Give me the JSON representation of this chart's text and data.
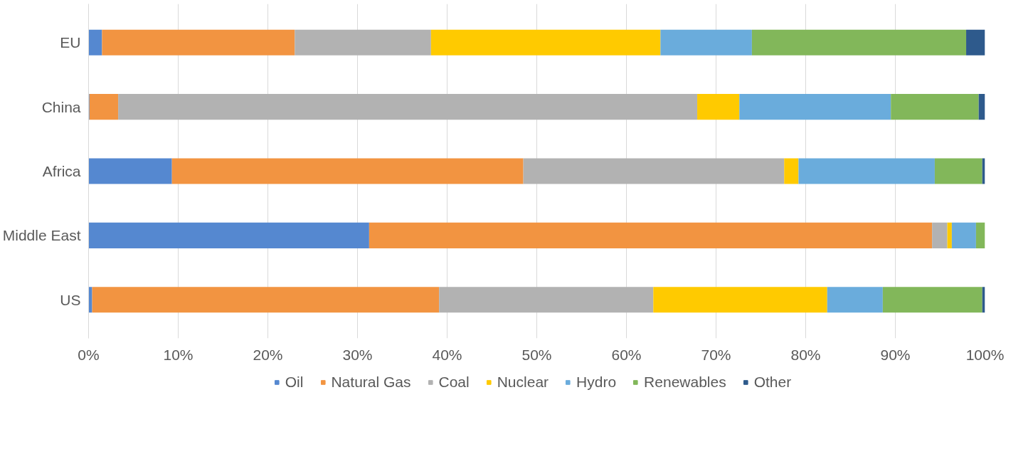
{
  "chart_data": {
    "type": "bar",
    "orientation": "horizontal",
    "stacked": true,
    "categories": [
      "EU",
      "China",
      "Africa",
      "Middle East",
      "US"
    ],
    "series": [
      {
        "name": "Oil",
        "color": "#5588d0",
        "values": [
          1.5,
          0.1,
          9.3,
          31.3,
          0.4
        ]
      },
      {
        "name": "Natural Gas",
        "color": "#f29441",
        "values": [
          21.5,
          3.2,
          39.2,
          62.8,
          38.7
        ]
      },
      {
        "name": "Coal",
        "color": "#b2b2b2",
        "values": [
          15.2,
          64.6,
          29.1,
          1.7,
          23.9
        ]
      },
      {
        "name": "Nuclear",
        "color": "#ffca00",
        "values": [
          25.6,
          4.7,
          1.6,
          0.5,
          19.4
        ]
      },
      {
        "name": "Hydro",
        "color": "#6aacdc",
        "values": [
          10.2,
          16.9,
          15.2,
          2.7,
          6.2
        ]
      },
      {
        "name": "Renewables",
        "color": "#82b75a",
        "values": [
          23.9,
          9.8,
          5.3,
          1.0,
          11.1
        ]
      },
      {
        "name": "Other",
        "color": "#2e5a8c",
        "values": [
          2.1,
          0.7,
          0.3,
          0,
          0.3
        ]
      }
    ],
    "xlim": [
      0,
      100
    ],
    "xticks": [
      {
        "value": 0,
        "label": "0%"
      },
      {
        "value": 10,
        "label": "10%"
      },
      {
        "value": 20,
        "label": "20%"
      },
      {
        "value": 30,
        "label": "30%"
      },
      {
        "value": 40,
        "label": "40%"
      },
      {
        "value": 50,
        "label": "50%"
      },
      {
        "value": 60,
        "label": "60%"
      },
      {
        "value": 70,
        "label": "70%"
      },
      {
        "value": 80,
        "label": "80%"
      },
      {
        "value": 90,
        "label": "90%"
      },
      {
        "value": 100,
        "label": "100%"
      }
    ],
    "grid": "x",
    "legend": "bottom"
  }
}
